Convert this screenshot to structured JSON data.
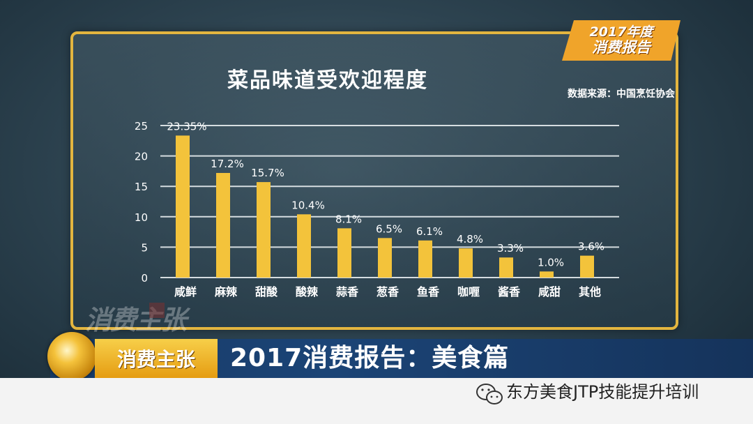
{
  "badge": {
    "line1": "2017年度",
    "line2": "消费报告"
  },
  "source": "数据来源：中国烹饪协会",
  "watermark": "消费主张",
  "banner": {
    "left": "消费主张",
    "title": "2017消费报告：美食篇"
  },
  "account": "东方美食JTP技能提升培训",
  "colors": {
    "bar": "#f3c33b",
    "border": "#e3b53f",
    "banner_left": "#f0b42c",
    "banner": "#1b3f6e"
  },
  "chart_data": {
    "type": "bar",
    "title": "菜品味道受欢迎程度",
    "categories": [
      "咸鲜",
      "麻辣",
      "甜酸",
      "酸辣",
      "蒜香",
      "葱香",
      "鱼香",
      "咖喱",
      "酱香",
      "咸甜",
      "其他"
    ],
    "values": [
      23.35,
      17.2,
      15.7,
      10.4,
      8.1,
      6.5,
      6.1,
      4.8,
      3.3,
      1.0,
      3.6
    ],
    "data_labels": [
      "23.35%",
      "17.2%",
      "15.7%",
      "10.4%",
      "8.1%",
      "6.5%",
      "6.1%",
      "4.8%",
      "3.3%",
      "1.0%",
      "3.6%"
    ],
    "y_ticks": [
      0,
      5,
      10,
      15,
      20,
      25
    ],
    "ylim": [
      0,
      25
    ],
    "grid": true,
    "legend": "none"
  }
}
